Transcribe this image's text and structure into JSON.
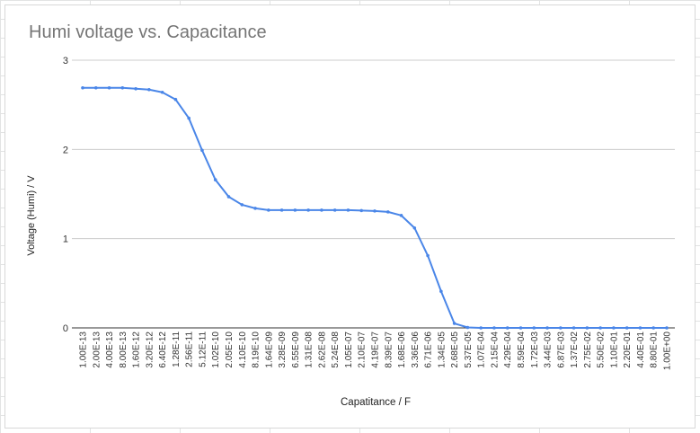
{
  "chart_data": {
    "type": "line",
    "title": "Humi voltage vs. Capacitance",
    "xlabel": "Capatitance / F",
    "ylabel": "Voltage (Humi) / V",
    "ylim": [
      0,
      3
    ],
    "yticks": [
      "0",
      "1",
      "2",
      "3"
    ],
    "grid": true,
    "legend": "none",
    "line_color": "#4a86e8",
    "categories": [
      "1.00E-13",
      "2.00E-13",
      "4.00E-13",
      "8.00E-13",
      "1.60E-12",
      "3.20E-12",
      "6.40E-12",
      "1.28E-11",
      "2.56E-11",
      "5.12E-11",
      "1.02E-10",
      "2.05E-10",
      "4.10E-10",
      "8.19E-10",
      "1.64E-09",
      "3.28E-09",
      "6.55E-09",
      "1.31E-08",
      "2.62E-08",
      "5.24E-08",
      "1.05E-07",
      "2.10E-07",
      "4.19E-07",
      "8.39E-07",
      "1.68E-06",
      "3.36E-06",
      "6.71E-06",
      "1.34E-05",
      "2.68E-05",
      "5.37E-05",
      "1.07E-04",
      "2.15E-04",
      "4.29E-04",
      "8.59E-04",
      "1.72E-03",
      "3.44E-03",
      "6.87E-03",
      "1.37E-02",
      "2.75E-02",
      "5.50E-02",
      "1.10E-01",
      "2.20E-01",
      "4.40E-01",
      "8.80E-01",
      "1.00E+00"
    ],
    "values": [
      2.69,
      2.69,
      2.69,
      2.69,
      2.68,
      2.67,
      2.64,
      2.56,
      2.35,
      1.99,
      1.66,
      1.47,
      1.38,
      1.34,
      1.32,
      1.32,
      1.32,
      1.32,
      1.32,
      1.32,
      1.32,
      1.315,
      1.31,
      1.3,
      1.26,
      1.12,
      0.81,
      0.41,
      0.05,
      0.005,
      0,
      0,
      0,
      0,
      0,
      0,
      0,
      0,
      0,
      0,
      0,
      0,
      0,
      0,
      0
    ]
  }
}
